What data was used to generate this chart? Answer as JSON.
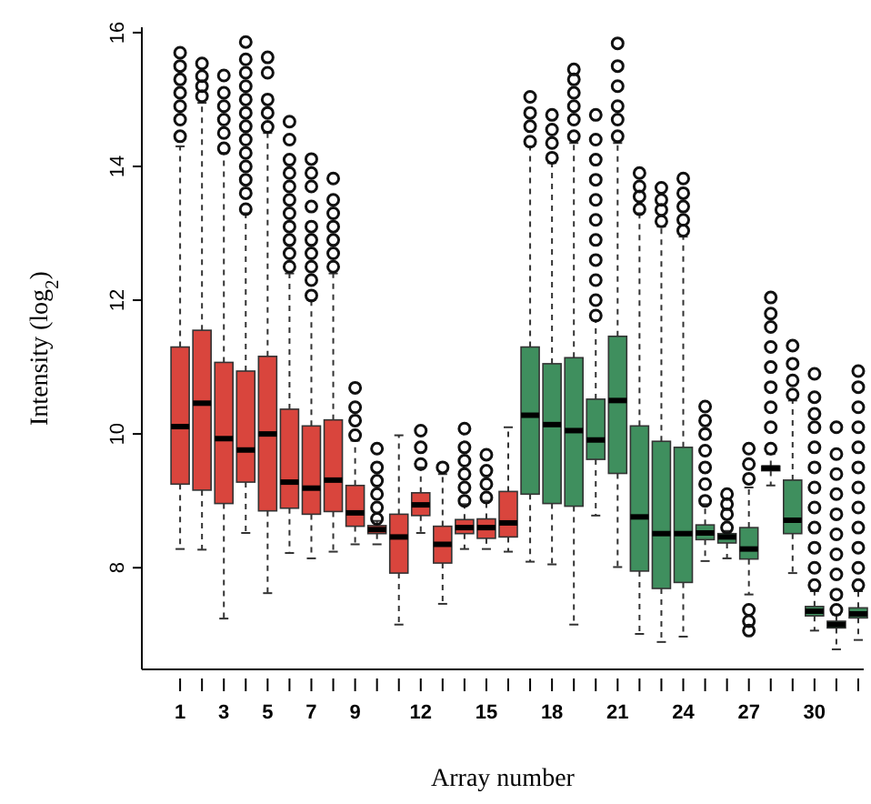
{
  "chart_data": {
    "type": "box",
    "xlabel": "Array number",
    "ylabel": "Intensity (log$_{2}$)",
    "categories": [
      "1",
      null,
      "3",
      null,
      "5",
      null,
      "7",
      null,
      "9",
      null,
      null,
      "12",
      null,
      null,
      "15",
      null,
      null,
      "18",
      null,
      null,
      "21",
      null,
      null,
      "24",
      null,
      null,
      "27",
      null,
      null,
      "30",
      null,
      null
    ],
    "colors": [
      "#d9453d",
      "#d9453d",
      "#d9453d",
      "#d9453d",
      "#d9453d",
      "#d9453d",
      "#d9453d",
      "#d9453d",
      "#d9453d",
      "#d9453d",
      "#d9453d",
      "#d9453d",
      "#d9453d",
      "#d9453d",
      "#d9453d",
      "#d9453d",
      "#3f8f5e",
      "#3f8f5e",
      "#3f8f5e",
      "#3f8f5e",
      "#3f8f5e",
      "#3f8f5e",
      "#3f8f5e",
      "#3f8f5e",
      "#3f8f5e",
      "#3f8f5e",
      "#3f8f5e",
      "#3f8f5e",
      "#3f8f5e",
      "#3f8f5e",
      "#3f8f5e",
      "#3f8f5e"
    ],
    "ylim": [
      6.48,
      16.08
    ],
    "yticks": [
      8,
      10,
      12,
      14,
      16
    ],
    "grid": false,
    "boxes": [
      {
        "low": 8.28,
        "q1": 9.25,
        "median": 10.11,
        "q3": 11.3,
        "high": 14.3,
        "outliers": [
          14.45,
          14.7,
          14.9,
          15.1,
          15.3,
          15.5,
          15.7
        ]
      },
      {
        "low": 8.27,
        "q1": 9.16,
        "median": 10.46,
        "q3": 11.55,
        "high": 14.95,
        "outliers": [
          15.05,
          15.2,
          15.35,
          15.54
        ]
      },
      {
        "low": 7.24,
        "q1": 8.96,
        "median": 9.93,
        "q3": 11.07,
        "high": 14.2,
        "outliers": [
          14.27,
          14.5,
          14.7,
          14.9,
          15.1,
          15.36
        ]
      },
      {
        "low": 8.52,
        "q1": 9.28,
        "median": 9.76,
        "q3": 10.94,
        "high": 13.3,
        "outliers": [
          13.36,
          13.6,
          13.8,
          14.0,
          14.2,
          14.4,
          14.6,
          14.8,
          15.0,
          15.2,
          15.4,
          15.6,
          15.86
        ]
      },
      {
        "low": 7.62,
        "q1": 8.85,
        "median": 10.0,
        "q3": 11.16,
        "high": 14.5,
        "outliers": [
          14.59,
          14.8,
          15.0,
          15.4,
          15.63
        ]
      },
      {
        "low": 8.22,
        "q1": 8.89,
        "median": 9.28,
        "q3": 10.37,
        "high": 12.4,
        "outliers": [
          12.5,
          12.7,
          12.9,
          13.1,
          13.3,
          13.5,
          13.7,
          13.9,
          14.1,
          14.4,
          14.67
        ]
      },
      {
        "low": 8.14,
        "q1": 8.8,
        "median": 9.19,
        "q3": 10.12,
        "high": 12.0,
        "outliers": [
          12.07,
          12.3,
          12.5,
          12.7,
          12.9,
          13.1,
          13.4,
          13.7,
          13.9,
          14.11
        ]
      },
      {
        "low": 8.24,
        "q1": 8.84,
        "median": 9.31,
        "q3": 10.21,
        "high": 12.4,
        "outliers": [
          12.5,
          12.7,
          12.9,
          13.1,
          13.3,
          13.5,
          13.82
        ]
      },
      {
        "low": 8.35,
        "q1": 8.62,
        "median": 8.82,
        "q3": 9.23,
        "high": 9.9,
        "outliers": [
          9.98,
          10.2,
          10.4,
          10.69
        ]
      },
      {
        "low": 8.35,
        "q1": 8.51,
        "median": 8.57,
        "q3": 8.63,
        "high": 8.7,
        "outliers": [
          8.73,
          8.9,
          9.1,
          9.3,
          9.5,
          9.78
        ]
      },
      {
        "low": 7.15,
        "q1": 7.92,
        "median": 8.46,
        "q3": 8.8,
        "high": 9.98
      },
      {
        "low": 8.52,
        "q1": 8.78,
        "median": 8.94,
        "q3": 9.12,
        "high": 9.5,
        "outliers": [
          9.55,
          9.8,
          10.05
        ]
      },
      {
        "low": 7.46,
        "q1": 8.07,
        "median": 8.35,
        "q3": 8.62,
        "high": 9.4,
        "outliers": [
          9.5
        ]
      },
      {
        "low": 8.28,
        "q1": 8.51,
        "median": 8.6,
        "q3": 8.72,
        "high": 8.95,
        "outliers": [
          9.0,
          9.2,
          9.4,
          9.6,
          9.8,
          10.08
        ]
      },
      {
        "low": 8.28,
        "q1": 8.44,
        "median": 8.6,
        "q3": 8.73,
        "high": 9.0,
        "outliers": [
          9.05,
          9.25,
          9.45,
          9.69
        ]
      },
      {
        "low": 8.24,
        "q1": 8.46,
        "median": 8.67,
        "q3": 9.14,
        "high": 10.1
      },
      {
        "low": 8.09,
        "q1": 9.1,
        "median": 10.28,
        "q3": 11.3,
        "high": 14.3,
        "outliers": [
          14.37,
          14.6,
          14.8,
          15.04
        ]
      },
      {
        "low": 8.05,
        "q1": 8.96,
        "median": 10.14,
        "q3": 11.05,
        "high": 14.05,
        "outliers": [
          14.13,
          14.35,
          14.55,
          14.77
        ]
      },
      {
        "low": 7.15,
        "q1": 8.92,
        "median": 10.05,
        "q3": 11.14,
        "high": 14.35,
        "outliers": [
          14.45,
          14.7,
          14.9,
          15.1,
          15.3,
          15.45
        ]
      },
      {
        "low": 8.78,
        "q1": 9.62,
        "median": 9.91,
        "q3": 10.52,
        "high": 11.7,
        "outliers": [
          11.77,
          12.0,
          12.3,
          12.6,
          12.9,
          13.2,
          13.5,
          13.8,
          14.1,
          14.4,
          14.77
        ]
      },
      {
        "low": 8.01,
        "q1": 9.41,
        "median": 10.5,
        "q3": 11.46,
        "high": 14.35,
        "outliers": [
          14.45,
          14.7,
          14.9,
          15.2,
          15.5,
          15.84
        ]
      },
      {
        "low": 7.01,
        "q1": 7.95,
        "median": 8.76,
        "q3": 10.12,
        "high": 13.3,
        "outliers": [
          13.36,
          13.55,
          13.7,
          13.9
        ]
      },
      {
        "low": 6.89,
        "q1": 7.69,
        "median": 8.51,
        "q3": 9.89,
        "high": 13.1,
        "outliers": [
          13.18,
          13.35,
          13.5,
          13.68
        ]
      },
      {
        "low": 6.97,
        "q1": 7.78,
        "median": 8.51,
        "q3": 9.8,
        "high": 12.95,
        "outliers": [
          13.04,
          13.2,
          13.4,
          13.6,
          13.82
        ]
      },
      {
        "low": 8.1,
        "q1": 8.42,
        "median": 8.52,
        "q3": 8.64,
        "high": 8.95,
        "outliers": [
          9.0,
          9.25,
          9.5,
          9.75,
          10.0,
          10.2,
          10.41
        ]
      },
      {
        "low": 8.14,
        "q1": 8.37,
        "median": 8.46,
        "q3": 8.51,
        "high": 8.55,
        "outliers": [
          8.6,
          8.8,
          8.95,
          9.1
        ]
      },
      {
        "low": 7.6,
        "q1": 8.13,
        "median": 8.28,
        "q3": 8.6,
        "high": 9.2,
        "outliers": [
          7.06,
          7.2,
          7.37,
          9.33,
          9.55,
          9.78
        ]
      },
      {
        "low": 9.23,
        "q1": 9.45,
        "median": 9.49,
        "q3": 9.52,
        "high": 9.7,
        "outliers": [
          9.78,
          10.1,
          10.4,
          10.7,
          11.0,
          11.3,
          11.6,
          11.8,
          12.04
        ]
      },
      {
        "low": 7.92,
        "q1": 8.51,
        "median": 8.71,
        "q3": 9.31,
        "high": 10.5,
        "outliers": [
          10.59,
          10.8,
          11.05,
          11.32
        ]
      },
      {
        "low": 7.06,
        "q1": 7.28,
        "median": 7.35,
        "q3": 7.42,
        "high": 7.65,
        "outliers": [
          7.74,
          8.0,
          8.3,
          8.6,
          8.9,
          9.2,
          9.5,
          9.8,
          10.1,
          10.3,
          10.55,
          10.9
        ]
      },
      {
        "low": 6.78,
        "q1": 7.1,
        "median": 7.15,
        "q3": 7.2,
        "high": 7.3,
        "outliers": [
          7.37,
          7.6,
          7.9,
          8.2,
          8.5,
          8.8,
          9.1,
          9.4,
          9.7,
          10.1
        ]
      },
      {
        "low": 6.92,
        "q1": 7.25,
        "median": 7.31,
        "q3": 7.4,
        "high": 7.65,
        "outliers": [
          7.74,
          8.0,
          8.3,
          8.6,
          8.9,
          9.2,
          9.5,
          9.8,
          10.1,
          10.4,
          10.7,
          10.94
        ]
      }
    ]
  }
}
